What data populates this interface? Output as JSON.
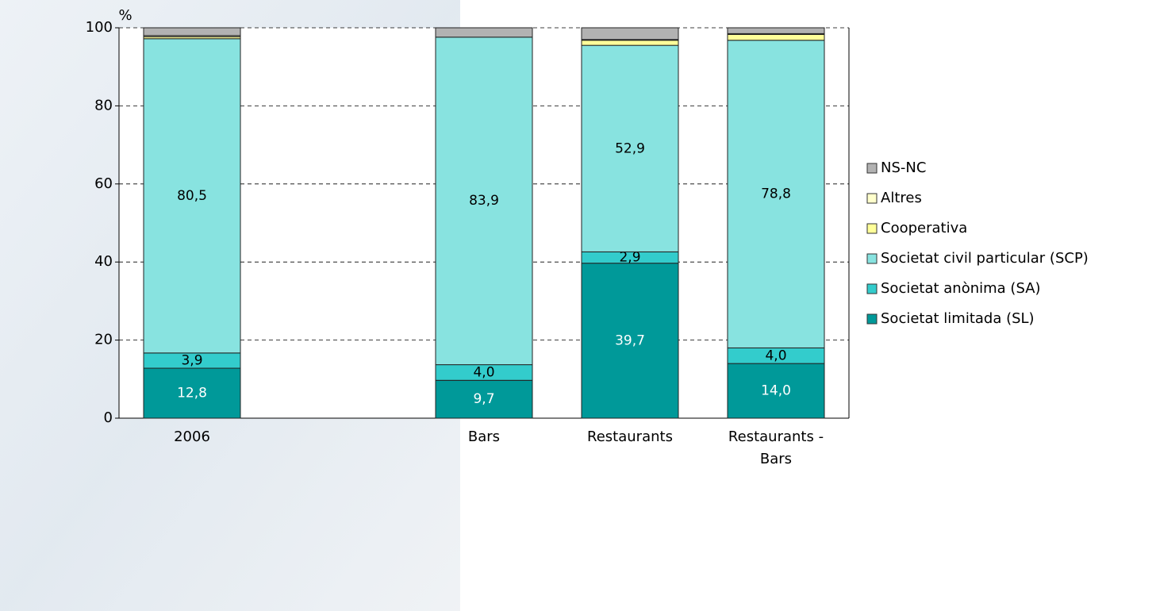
{
  "chart_data": {
    "type": "stacked_bar",
    "y_unit_label": "%",
    "categories": [
      "2006",
      null,
      "Bars",
      "Restaurants",
      "Restaurants - Bars"
    ],
    "ylim": [
      0,
      100
    ],
    "yticks": [
      0,
      20,
      40,
      60,
      80,
      100
    ],
    "grid": true,
    "legend": "right",
    "series": [
      {
        "name": "Societat limitada (SL)",
        "color": "#009999",
        "label_color": "#ffffff",
        "values": [
          12.8,
          null,
          9.7,
          39.7,
          14.0
        ],
        "value_labels": [
          "12,8",
          null,
          "9,7",
          "39,7",
          "14,0"
        ]
      },
      {
        "name": "Societat anònima (SA)",
        "color": "#33cccc",
        "label_color": "#000000",
        "values": [
          3.9,
          null,
          4.0,
          2.9,
          4.0
        ],
        "value_labels": [
          "3,9",
          null,
          "4,0",
          "2,9",
          "4,0"
        ]
      },
      {
        "name": "Societat civil particular (SCP)",
        "color": "#88e3e0",
        "label_color": "#000000",
        "values": [
          80.5,
          null,
          83.9,
          52.9,
          78.8
        ],
        "value_labels": [
          "80,5",
          null,
          "83,9",
          "52,9",
          "78,8"
        ]
      },
      {
        "name": "Cooperativa",
        "color": "#ffff99",
        "values": [
          0.5,
          null,
          0,
          1.3,
          1.5
        ]
      },
      {
        "name": "Altres",
        "color": "#ffffcc",
        "values": [
          0.3,
          null,
          0,
          0.2,
          0.2
        ]
      },
      {
        "name": "NS-NC",
        "color": "#b2b2b2",
        "values": [
          2.0,
          null,
          2.4,
          3.0,
          1.5
        ]
      }
    ]
  }
}
